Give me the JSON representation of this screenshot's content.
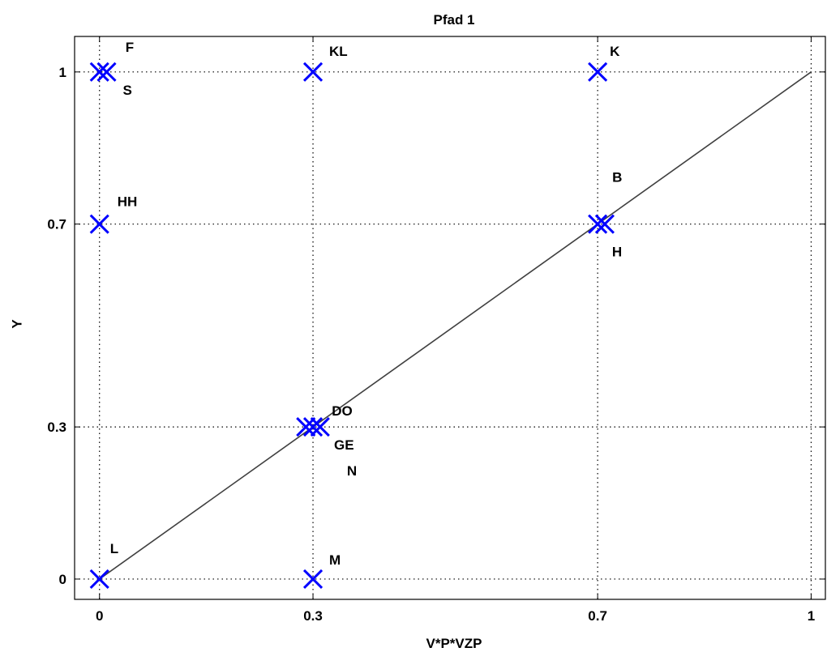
{
  "chart_data": {
    "type": "scatter",
    "title": "Pfad 1",
    "xlabel": "V*P*VZP",
    "ylabel": "Y",
    "xlim": [
      -0.035,
      1.02
    ],
    "ylim": [
      -0.04,
      1.07
    ],
    "xticks": [
      0,
      0.3,
      0.7,
      1
    ],
    "xtick_labels": [
      "0",
      "0.3",
      "0.7",
      "1"
    ],
    "yticks": [
      0,
      0.3,
      0.7,
      1
    ],
    "ytick_labels": [
      "0",
      "0.3",
      "0.7",
      "1"
    ],
    "grid": "dotted at tick positions",
    "marker": "x",
    "marker_color": "#0000ff",
    "line_color": "#404040",
    "reference_line": {
      "x": [
        0,
        1
      ],
      "y": [
        0,
        1
      ]
    },
    "points": [
      {
        "label": "F",
        "x": 0.0,
        "y": 1.0
      },
      {
        "label": "S",
        "x": 0.01,
        "y": 1.0
      },
      {
        "label": "KL",
        "x": 0.3,
        "y": 1.0
      },
      {
        "label": "K",
        "x": 0.7,
        "y": 1.0
      },
      {
        "label": "HH",
        "x": 0.0,
        "y": 0.7
      },
      {
        "label": "B",
        "x": 0.7,
        "y": 0.7
      },
      {
        "label": "H",
        "x": 0.71,
        "y": 0.7
      },
      {
        "label": "DO",
        "x": 0.29,
        "y": 0.3
      },
      {
        "label": "GE",
        "x": 0.3,
        "y": 0.3
      },
      {
        "label": "N",
        "x": 0.31,
        "y": 0.3
      },
      {
        "label": "L",
        "x": 0.0,
        "y": 0.0
      },
      {
        "label": "M",
        "x": 0.3,
        "y": 0.0
      }
    ]
  }
}
